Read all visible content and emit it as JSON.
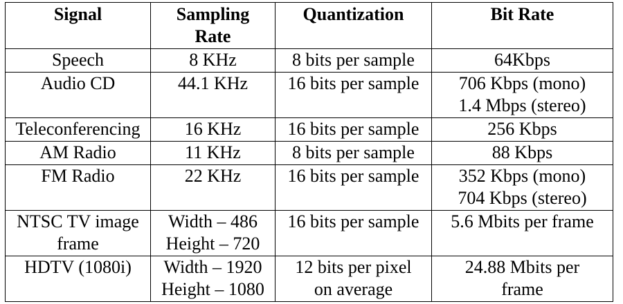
{
  "table": {
    "headers": [
      [
        "Signal"
      ],
      [
        "Sampling",
        "Rate"
      ],
      [
        "Quantization"
      ],
      [
        "Bit Rate"
      ]
    ],
    "rows": [
      [
        [
          "Speech"
        ],
        [
          "8 KHz"
        ],
        [
          "8 bits per sample"
        ],
        [
          "64Kbps"
        ]
      ],
      [
        [
          "Audio CD"
        ],
        [
          "44.1 KHz"
        ],
        [
          "16 bits per sample"
        ],
        [
          "706 Kbps (mono)",
          "1.4 Mbps (stereo)"
        ]
      ],
      [
        [
          "Teleconferencing"
        ],
        [
          "16 KHz"
        ],
        [
          "16 bits per sample"
        ],
        [
          "256 Kbps"
        ]
      ],
      [
        [
          "AM Radio"
        ],
        [
          "11 KHz"
        ],
        [
          "8 bits per sample"
        ],
        [
          "88 Kbps"
        ]
      ],
      [
        [
          "FM Radio"
        ],
        [
          "22 KHz"
        ],
        [
          "16 bits per sample"
        ],
        [
          "352 Kbps (mono)",
          "704 Kbps (stereo)"
        ]
      ],
      [
        [
          "NTSC TV image",
          "frame"
        ],
        [
          "Width – 486",
          "Height – 720"
        ],
        [
          "16 bits per sample"
        ],
        [
          "5.6 Mbits per frame"
        ]
      ],
      [
        [
          "HDTV (1080i)"
        ],
        [
          "Width – 1920",
          "Height – 1080"
        ],
        [
          "12 bits per pixel",
          "on average"
        ],
        [
          "24.88 Mbits per",
          "frame"
        ]
      ]
    ]
  }
}
